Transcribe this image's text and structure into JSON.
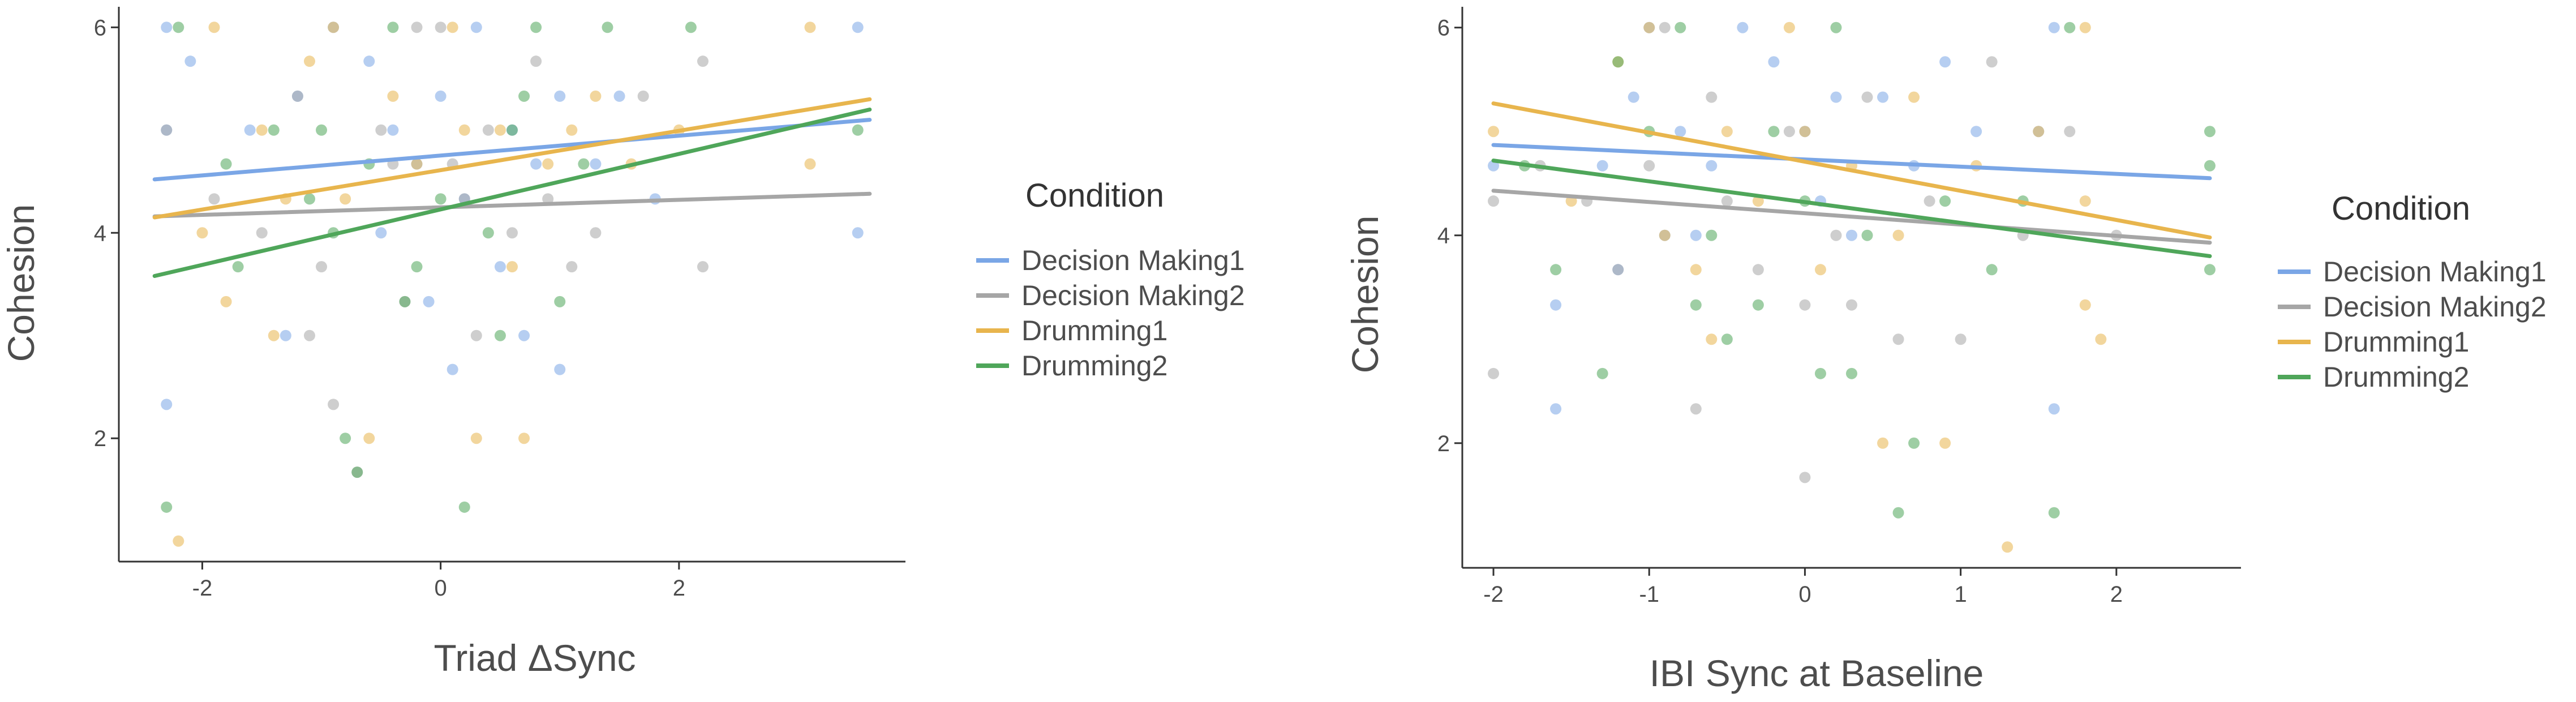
{
  "chart_data": [
    {
      "type": "scatter",
      "xlabel": "Triad ΔSync",
      "ylabel": "Cohesion",
      "xlim": [
        -2.7,
        3.9
      ],
      "ylim": [
        0.8,
        6.2
      ],
      "xticks": [
        "-2",
        "0",
        "2"
      ],
      "yticks": [
        "2",
        "4",
        "6"
      ],
      "legend_title": "Condition",
      "series": [
        {
          "name": "Decision Making1",
          "color": "#7aa6e6",
          "line": [
            [
              -2.4,
              4.52
            ],
            [
              3.6,
              5.1
            ]
          ],
          "points": [
            [
              -2.3,
              6
            ],
            [
              -2.3,
              5
            ],
            [
              -2.3,
              2.33
            ],
            [
              -2.1,
              5.67
            ],
            [
              -1.6,
              5
            ],
            [
              -1.2,
              5.33
            ],
            [
              -0.9,
              6
            ],
            [
              -0.6,
              5.67
            ],
            [
              -0.4,
              5
            ],
            [
              -0.2,
              4.67
            ],
            [
              0,
              5.33
            ],
            [
              0.2,
              4.33
            ],
            [
              0.3,
              6
            ],
            [
              0.6,
              5
            ],
            [
              0.8,
              4.67
            ],
            [
              1,
              5.33
            ],
            [
              1.3,
              4.67
            ],
            [
              1.5,
              5.33
            ],
            [
              1.8,
              4.33
            ],
            [
              3.5,
              6
            ],
            [
              3.5,
              4
            ],
            [
              0.5,
              3.67
            ],
            [
              -0.5,
              4
            ],
            [
              0.7,
              3
            ],
            [
              1,
              2.67
            ],
            [
              0.1,
              2.67
            ],
            [
              -0.1,
              3.33
            ],
            [
              -1.3,
              3
            ]
          ]
        },
        {
          "name": "Decision Making2",
          "color": "#a6a6a6",
          "line": [
            [
              -2.4,
              4.16
            ],
            [
              3.6,
              4.38
            ]
          ],
          "points": [
            [
              -2.3,
              5
            ],
            [
              -1.9,
              4.33
            ],
            [
              -1.5,
              4
            ],
            [
              -1.2,
              5.33
            ],
            [
              -1,
              3.67
            ],
            [
              -0.9,
              2.33
            ],
            [
              -0.7,
              1.67
            ],
            [
              -0.5,
              5
            ],
            [
              -0.3,
              3.33
            ],
            [
              0,
              6
            ],
            [
              0.2,
              4.33
            ],
            [
              0.4,
              5
            ],
            [
              0.6,
              4
            ],
            [
              0.9,
              4.33
            ],
            [
              1.1,
              3.67
            ],
            [
              1.3,
              4
            ],
            [
              1.7,
              5.33
            ],
            [
              2.2,
              5.67
            ],
            [
              2.2,
              3.67
            ],
            [
              -0.2,
              6
            ],
            [
              0.3,
              3
            ],
            [
              -0.4,
              4.67
            ],
            [
              0.8,
              5.67
            ],
            [
              -1.1,
              3
            ],
            [
              0.1,
              4.67
            ]
          ]
        },
        {
          "name": "Drumming1",
          "color": "#e8b54d",
          "line": [
            [
              -2.4,
              4.15
            ],
            [
              3.6,
              5.3
            ]
          ],
          "points": [
            [
              -2.2,
              1
            ],
            [
              -2,
              4
            ],
            [
              -1.9,
              6
            ],
            [
              -1.8,
              3.33
            ],
            [
              -1.5,
              5
            ],
            [
              -1.3,
              4.33
            ],
            [
              -1.1,
              5.67
            ],
            [
              -0.9,
              6
            ],
            [
              -0.6,
              2
            ],
            [
              -0.4,
              5.33
            ],
            [
              -0.2,
              4.67
            ],
            [
              0.1,
              6
            ],
            [
              0.3,
              2
            ],
            [
              0.5,
              5
            ],
            [
              0.7,
              2
            ],
            [
              0.9,
              4.67
            ],
            [
              1.1,
              5
            ],
            [
              1.3,
              5.33
            ],
            [
              1.6,
              4.67
            ],
            [
              2,
              5
            ],
            [
              3.1,
              6
            ],
            [
              3.1,
              4.67
            ],
            [
              0.6,
              3.67
            ],
            [
              -0.8,
              4.33
            ],
            [
              0.2,
              5
            ],
            [
              -1.4,
              3
            ]
          ]
        },
        {
          "name": "Drumming2",
          "color": "#4fa65a",
          "line": [
            [
              -2.4,
              3.58
            ],
            [
              3.6,
              5.2
            ]
          ],
          "points": [
            [
              -2.3,
              1.33
            ],
            [
              -2.2,
              6
            ],
            [
              -1.8,
              4.67
            ],
            [
              -1.7,
              3.67
            ],
            [
              -1.4,
              5
            ],
            [
              -1.1,
              4.33
            ],
            [
              -0.9,
              4
            ],
            [
              -0.8,
              2
            ],
            [
              -0.6,
              4.67
            ],
            [
              -0.4,
              6
            ],
            [
              -0.2,
              3.67
            ],
            [
              0,
              4.33
            ],
            [
              0.2,
              1.33
            ],
            [
              0.4,
              4
            ],
            [
              0.6,
              5
            ],
            [
              0.8,
              6
            ],
            [
              1,
              3.33
            ],
            [
              1.2,
              4.67
            ],
            [
              1.4,
              6
            ],
            [
              2.1,
              6
            ],
            [
              3.5,
              5
            ],
            [
              0.5,
              3
            ],
            [
              -0.7,
              1.67
            ],
            [
              -0.3,
              3.33
            ],
            [
              0.7,
              5.33
            ],
            [
              -1,
              5
            ]
          ]
        }
      ]
    },
    {
      "type": "scatter",
      "xlabel": "IBI Sync at Baseline",
      "ylabel": "Cohesion",
      "xlim": [
        -2.2,
        2.8
      ],
      "ylim": [
        0.8,
        6.2
      ],
      "xticks": [
        "-2",
        "-1",
        "0",
        "1",
        "2"
      ],
      "yticks": [
        "2",
        "4",
        "6"
      ],
      "legend_title": "Condition",
      "series": [
        {
          "name": "Decision Making1",
          "color": "#7aa6e6",
          "line": [
            [
              -2,
              4.87
            ],
            [
              2.6,
              4.55
            ]
          ],
          "points": [
            [
              -2,
              4.67
            ],
            [
              -1.6,
              3.33
            ],
            [
              -1.6,
              2.33
            ],
            [
              -1.3,
              4.67
            ],
            [
              -1.1,
              5.33
            ],
            [
              -1,
              6
            ],
            [
              -0.9,
              4
            ],
            [
              -0.8,
              5
            ],
            [
              -0.6,
              4.67
            ],
            [
              -0.4,
              6
            ],
            [
              -0.2,
              5.67
            ],
            [
              0,
              5
            ],
            [
              0.1,
              4.33
            ],
            [
              0.3,
              4
            ],
            [
              0.5,
              5.33
            ],
            [
              0.7,
              4.67
            ],
            [
              0.9,
              5.67
            ],
            [
              1.1,
              5
            ],
            [
              1.5,
              5
            ],
            [
              1.6,
              6
            ],
            [
              1.6,
              2.33
            ],
            [
              -0.7,
              4
            ],
            [
              0.2,
              5.33
            ],
            [
              -1.2,
              3.67
            ]
          ]
        },
        {
          "name": "Decision Making2",
          "color": "#a6a6a6",
          "line": [
            [
              -2,
              4.43
            ],
            [
              2.6,
              3.93
            ]
          ],
          "points": [
            [
              -2,
              2.67
            ],
            [
              -2,
              4.33
            ],
            [
              -1.7,
              4.67
            ],
            [
              -1.4,
              4.33
            ],
            [
              -1.2,
              3.67
            ],
            [
              -1,
              4.67
            ],
            [
              -0.9,
              6
            ],
            [
              -0.7,
              2.33
            ],
            [
              -0.5,
              4.33
            ],
            [
              -0.3,
              3.67
            ],
            [
              -0.1,
              5
            ],
            [
              0,
              3.33
            ],
            [
              0,
              1.67
            ],
            [
              0.2,
              4
            ],
            [
              0.4,
              5.33
            ],
            [
              0.6,
              3
            ],
            [
              0.8,
              4.33
            ],
            [
              1,
              3
            ],
            [
              1.2,
              5.67
            ],
            [
              1.4,
              4
            ],
            [
              1.7,
              5
            ],
            [
              2,
              4
            ],
            [
              -0.6,
              5.33
            ],
            [
              0.3,
              3.33
            ]
          ]
        },
        {
          "name": "Drumming1",
          "color": "#e8b54d",
          "line": [
            [
              -2,
              5.27
            ],
            [
              2.6,
              3.98
            ]
          ],
          "points": [
            [
              -2,
              5
            ],
            [
              -1.5,
              4.33
            ],
            [
              -1.2,
              5.67
            ],
            [
              -1,
              6
            ],
            [
              -0.9,
              4
            ],
            [
              -0.7,
              3.67
            ],
            [
              -0.5,
              5
            ],
            [
              -0.3,
              4.33
            ],
            [
              -0.1,
              6
            ],
            [
              0,
              5
            ],
            [
              0.1,
              3.67
            ],
            [
              0.3,
              4.67
            ],
            [
              0.5,
              2
            ],
            [
              0.7,
              5.33
            ],
            [
              0.9,
              2
            ],
            [
              1.1,
              4.67
            ],
            [
              1.3,
              1
            ],
            [
              1.5,
              5
            ],
            [
              1.8,
              6
            ],
            [
              1.8,
              4.33
            ],
            [
              1.9,
              3
            ],
            [
              1.8,
              3.33
            ],
            [
              -0.6,
              3
            ],
            [
              0.6,
              4
            ]
          ]
        },
        {
          "name": "Drumming2",
          "color": "#4fa65a",
          "line": [
            [
              -2,
              4.72
            ],
            [
              2.6,
              3.8
            ]
          ],
          "points": [
            [
              -1.8,
              4.67
            ],
            [
              -1.6,
              3.67
            ],
            [
              -1.3,
              2.67
            ],
            [
              -1.2,
              5.67
            ],
            [
              -1,
              5
            ],
            [
              -0.8,
              6
            ],
            [
              -0.6,
              4
            ],
            [
              -0.5,
              3
            ],
            [
              -0.3,
              3.33
            ],
            [
              -0.2,
              5
            ],
            [
              0,
              4.33
            ],
            [
              0.2,
              6
            ],
            [
              0.3,
              2.67
            ],
            [
              0.4,
              4
            ],
            [
              0.6,
              1.33
            ],
            [
              0.7,
              2
            ],
            [
              0.9,
              4.33
            ],
            [
              1.2,
              3.67
            ],
            [
              1.4,
              4.33
            ],
            [
              1.6,
              1.33
            ],
            [
              1.7,
              6
            ],
            [
              2.6,
              5
            ],
            [
              2.6,
              4.67
            ],
            [
              2.6,
              3.67
            ],
            [
              -0.7,
              3.33
            ],
            [
              0.1,
              2.67
            ]
          ]
        }
      ]
    }
  ]
}
